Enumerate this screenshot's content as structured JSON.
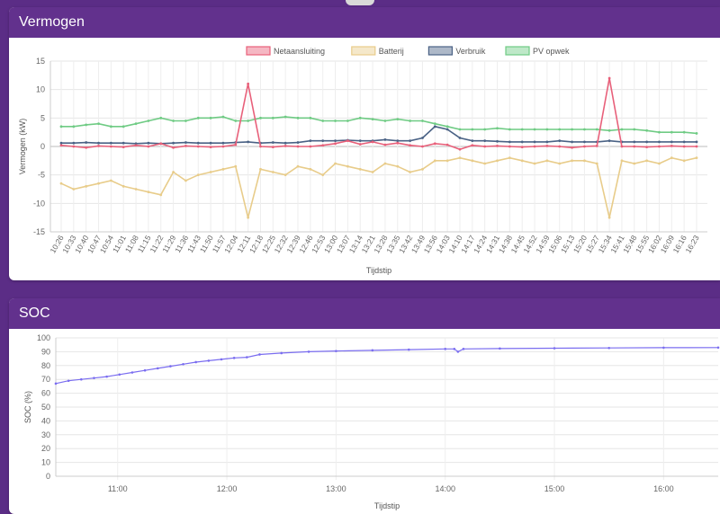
{
  "panels": {
    "power": {
      "title": "Vermogen"
    },
    "soc": {
      "title": "SOC"
    }
  },
  "colors": {
    "netaansluiting": "#e8607a",
    "batterij": "#e8cc8a",
    "verbruik": "#4a6285",
    "pv_opwek": "#6fcb84",
    "soc": "#7a6df0",
    "header": "#62318d",
    "background": "#5b2d86"
  },
  "chart_data": [
    {
      "type": "line",
      "xlabel": "Tijdstip",
      "ylabel": "Vermogen (kW)",
      "ylim": [
        -15,
        15
      ],
      "yticks": [
        15,
        10,
        5,
        0,
        -5,
        -10,
        -15
      ],
      "legend_position": "top-center",
      "grid": true,
      "x_ticks": [
        "10:26",
        "10:33",
        "10:40",
        "10:47",
        "10:54",
        "11:01",
        "11:08",
        "11:15",
        "11:22",
        "11:29",
        "11:36",
        "11:43",
        "11:50",
        "11:57",
        "12:04",
        "12:11",
        "12:18",
        "12:25",
        "12:32",
        "12:39",
        "12:46",
        "12:53",
        "13:00",
        "13:07",
        "13:14",
        "13:21",
        "13:28",
        "13:35",
        "13:42",
        "13:49",
        "13:56",
        "14:03",
        "14:10",
        "14:17",
        "14:24",
        "14:31",
        "14:38",
        "14:45",
        "14:52",
        "14:59",
        "15:06",
        "15:13",
        "15:20",
        "15:27",
        "15:34",
        "15:41",
        "15:48",
        "15:55",
        "16:02",
        "16:09",
        "16:16",
        "16:23"
      ],
      "series": [
        {
          "name": "Netaansluiting",
          "values": [
            0.2,
            0.0,
            -0.2,
            0.1,
            0.0,
            -0.1,
            0.2,
            0.0,
            0.5,
            -0.2,
            0.1,
            0.0,
            -0.1,
            0.0,
            0.3,
            11.0,
            0.0,
            -0.1,
            0.1,
            0.0,
            0.0,
            0.2,
            0.5,
            1.0,
            0.4,
            0.8,
            0.3,
            0.6,
            0.2,
            0.0,
            0.5,
            0.3,
            -0.5,
            0.2,
            0.0,
            0.1,
            0.0,
            -0.1,
            0.0,
            0.1,
            0.0,
            -0.2,
            0.0,
            0.1,
            12.0,
            0.0,
            0.0,
            -0.1,
            0.0,
            0.1,
            0.0,
            0.0
          ]
        },
        {
          "name": "Batterij",
          "values": [
            -6.5,
            -7.5,
            -7.0,
            -6.5,
            -6.0,
            -7.0,
            -7.5,
            -8.0,
            -8.5,
            -4.5,
            -6.0,
            -5.0,
            -4.5,
            -4.0,
            -3.5,
            -12.5,
            -4.0,
            -4.5,
            -5.0,
            -3.5,
            -4.0,
            -5.0,
            -3.0,
            -3.5,
            -4.0,
            -4.5,
            -3.0,
            -3.5,
            -4.5,
            -4.0,
            -2.5,
            -2.5,
            -2.0,
            -2.5,
            -3.0,
            -2.5,
            -2.0,
            -2.5,
            -3.0,
            -2.5,
            -3.0,
            -2.5,
            -2.5,
            -3.0,
            -12.5,
            -2.5,
            -3.0,
            -2.5,
            -3.0,
            -2.0,
            -2.5,
            -2.0
          ]
        },
        {
          "name": "Verbruik",
          "values": [
            0.6,
            0.6,
            0.7,
            0.6,
            0.6,
            0.6,
            0.5,
            0.6,
            0.5,
            0.6,
            0.7,
            0.6,
            0.6,
            0.6,
            0.7,
            0.8,
            0.6,
            0.7,
            0.6,
            0.7,
            1.0,
            1.0,
            1.0,
            1.1,
            1.0,
            1.0,
            1.2,
            1.0,
            1.0,
            1.5,
            3.5,
            3.0,
            1.5,
            1.0,
            1.0,
            0.9,
            0.8,
            0.8,
            0.8,
            0.8,
            1.0,
            0.8,
            0.8,
            0.8,
            1.0,
            0.8,
            0.8,
            0.8,
            0.8,
            0.8,
            0.8,
            0.8
          ]
        },
        {
          "name": "PV opwek",
          "values": [
            3.5,
            3.5,
            3.8,
            4.0,
            3.5,
            3.5,
            4.0,
            4.5,
            5.0,
            4.5,
            4.5,
            5.0,
            5.0,
            5.2,
            4.5,
            4.5,
            5.0,
            5.0,
            5.2,
            5.0,
            5.0,
            4.5,
            4.5,
            4.5,
            5.0,
            4.8,
            4.5,
            4.8,
            4.5,
            4.5,
            4.0,
            3.5,
            3.0,
            3.0,
            3.0,
            3.2,
            3.0,
            3.0,
            3.0,
            3.0,
            3.0,
            3.0,
            3.0,
            3.0,
            2.8,
            3.0,
            3.0,
            2.8,
            2.5,
            2.5,
            2.5,
            2.3
          ]
        }
      ]
    },
    {
      "type": "line",
      "xlabel": "Tijdstip",
      "ylabel": "SOC (%)",
      "ylim": [
        0,
        100
      ],
      "yticks": [
        100,
        90,
        80,
        70,
        60,
        50,
        40,
        30,
        20,
        10,
        0
      ],
      "x_range": [
        "10:26",
        "16:30"
      ],
      "x_ticks": [
        "11:00",
        "12:00",
        "13:00",
        "14:00",
        "15:00",
        "16:00"
      ],
      "grid": true,
      "series": [
        {
          "x": [
            "10:26",
            "10:33",
            "10:40",
            "10:47",
            "10:54",
            "11:01",
            "11:08",
            "11:15",
            "11:22",
            "11:29",
            "11:36",
            "11:43",
            "11:50",
            "11:57",
            "12:04",
            "12:11",
            "12:18",
            "12:30",
            "12:45",
            "13:00",
            "13:20",
            "13:40",
            "14:00",
            "14:05",
            "14:07",
            "14:10",
            "14:30",
            "15:00",
            "15:30",
            "16:00",
            "16:30"
          ],
          "values": [
            67,
            69,
            70,
            71,
            72,
            73.5,
            75,
            76.5,
            78,
            79.5,
            81,
            82.5,
            83.5,
            84.5,
            85.5,
            86,
            88,
            89,
            90,
            90.5,
            91,
            91.5,
            92,
            92,
            90,
            92,
            92.3,
            92.5,
            92.7,
            92.9,
            93
          ]
        }
      ]
    }
  ]
}
